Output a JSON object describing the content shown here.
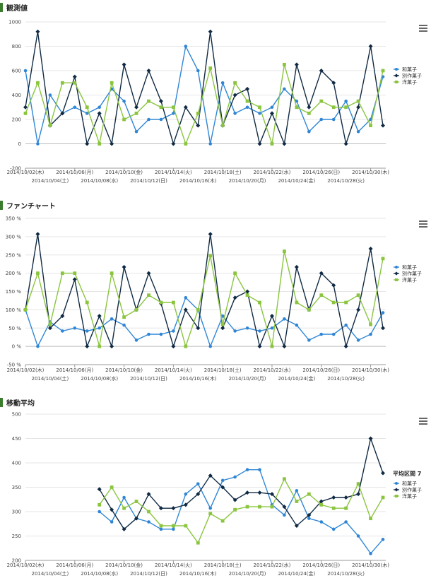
{
  "colors": {
    "wagashi": "#2f86d6",
    "besse": "#102a43",
    "yogashi": "#8bc53f",
    "accent": "#3a7d2c"
  },
  "chart_data": [
    {
      "type": "line",
      "title": "観測値",
      "ylim": [
        -200,
        1000
      ],
      "yticks": [
        -200,
        0,
        200,
        400,
        600,
        800,
        1000
      ],
      "ytick_labels": [
        "-200",
        "0",
        "200",
        "400",
        "600",
        "800",
        "1000"
      ],
      "legend": [
        "和菓子",
        "別作菓子",
        "洋菓子"
      ],
      "series": [
        {
          "name": "和菓子",
          "values": [
            600,
            0,
            400,
            250,
            300,
            250,
            300,
            450,
            350,
            100,
            200,
            200,
            250,
            800,
            600,
            0,
            500,
            250,
            300,
            250,
            300,
            450,
            350,
            100,
            200,
            200,
            350,
            100,
            200,
            550
          ]
        },
        {
          "name": "別作菓子",
          "values": [
            300,
            920,
            150,
            250,
            550,
            0,
            250,
            0,
            650,
            300,
            600,
            350,
            0,
            300,
            150,
            920,
            150,
            400,
            450,
            0,
            250,
            0,
            650,
            300,
            600,
            500,
            0,
            300,
            800,
            150
          ]
        },
        {
          "name": "洋菓子",
          "values": [
            250,
            500,
            150,
            500,
            500,
            300,
            0,
            500,
            200,
            250,
            350,
            300,
            300,
            0,
            250,
            620,
            150,
            500,
            350,
            300,
            0,
            650,
            300,
            250,
            350,
            300,
            300,
            350,
            150,
            600
          ]
        }
      ]
    },
    {
      "type": "line",
      "title": "ファンチャート",
      "ylim": [
        -50,
        350
      ],
      "yticks": [
        -50,
        0,
        50,
        100,
        150,
        200,
        250,
        300,
        350
      ],
      "ytick_labels": [
        "-50 %",
        "0 %",
        "50 %",
        "100 %",
        "150 %",
        "200 %",
        "250 %",
        "300 %",
        "350 %"
      ],
      "legend": [
        "和菓子",
        "別作菓子",
        "洋菓子"
      ],
      "series": [
        {
          "name": "和菓子",
          "values": [
            100,
            0,
            67,
            42,
            50,
            42,
            50,
            75,
            58,
            17,
            33,
            33,
            42,
            133,
            100,
            0,
            83,
            42,
            50,
            42,
            50,
            75,
            58,
            17,
            33,
            33,
            58,
            17,
            33,
            92
          ]
        },
        {
          "name": "別作菓子",
          "values": [
            100,
            307,
            50,
            83,
            183,
            0,
            83,
            0,
            217,
            100,
            200,
            117,
            0,
            100,
            50,
            307,
            50,
            133,
            150,
            0,
            83,
            0,
            217,
            100,
            200,
            167,
            0,
            100,
            267,
            50
          ]
        },
        {
          "name": "洋菓子",
          "values": [
            100,
            200,
            60,
            200,
            200,
            120,
            0,
            200,
            80,
            100,
            140,
            120,
            120,
            0,
            100,
            248,
            60,
            200,
            140,
            120,
            0,
            260,
            120,
            100,
            140,
            120,
            120,
            140,
            60,
            240
          ]
        }
      ]
    },
    {
      "type": "line",
      "title": "移動平均",
      "ylim": [
        200,
        500
      ],
      "yticks": [
        200,
        250,
        300,
        350,
        400,
        450,
        500
      ],
      "ytick_labels": [
        "200",
        "250",
        "300",
        "350",
        "400",
        "450",
        "500"
      ],
      "legend_title": "平均区間 7",
      "legend": [
        "和菓子",
        "別作菓子",
        "洋菓子"
      ],
      "series": [
        {
          "name": "和菓子",
          "values": [
            null,
            null,
            null,
            null,
            null,
            null,
            300,
            279,
            329,
            286,
            279,
            264,
            264,
            336,
            357,
            307,
            364,
            371,
            386,
            386,
            314,
            293,
            343,
            286,
            279,
            264,
            279,
            250,
            214,
            243
          ]
        },
        {
          "name": "別作菓子",
          "values": [
            null,
            null,
            null,
            null,
            null,
            null,
            346,
            304,
            264,
            286,
            336,
            307,
            307,
            314,
            336,
            374,
            350,
            324,
            339,
            339,
            336,
            310,
            271,
            293,
            321,
            329,
            329,
            336,
            450,
            379
          ]
        },
        {
          "name": "洋菓子",
          "values": [
            null,
            null,
            null,
            null,
            null,
            null,
            314,
            350,
            307,
            321,
            300,
            271,
            271,
            271,
            236,
            296,
            281,
            304,
            310,
            310,
            310,
            367,
            321,
            336,
            314,
            307,
            307,
            357,
            286,
            329
          ]
        }
      ]
    }
  ],
  "x_labels_upper": [
    "2014/10/02(木)",
    "2014/10/06(月)",
    "2014/10/10(金)",
    "2014/10/14(火)",
    "2014/10/18(土)",
    "2014/10/22(水)",
    "2014/10/26(日)",
    "2014/10/30(木)"
  ],
  "x_labels_lower": [
    "2014/10/04(土)",
    "2014/10/08(水)",
    "2014/10/12(日)",
    "2014/10/16(木)",
    "2014/10/20(月)",
    "2014/10/24(金)",
    "2014/10/28(火)"
  ]
}
